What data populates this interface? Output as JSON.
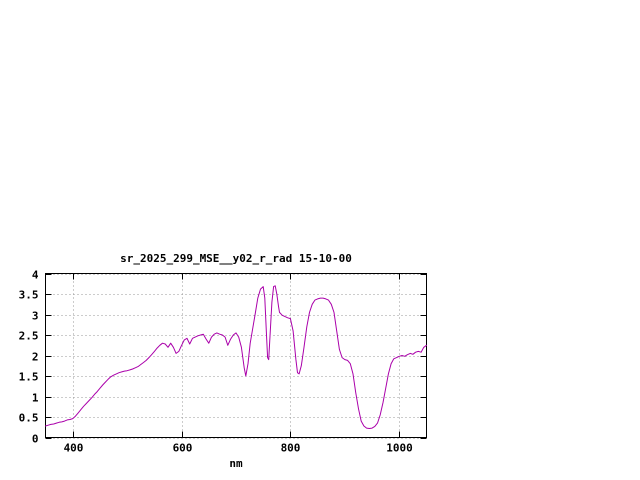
{
  "chart_data": {
    "type": "line",
    "title": "sr_2025_299_MSE__y02_r_rad 15-10-00",
    "xlabel": "nm",
    "ylabel": "",
    "xlim": [
      350,
      1050
    ],
    "ylim": [
      0,
      4
    ],
    "x_ticks": [
      400,
      600,
      800,
      1000
    ],
    "y_ticks": [
      0,
      0.5,
      1,
      1.5,
      2,
      2.5,
      3,
      3.5,
      4
    ],
    "grid": true,
    "legend": "none",
    "line_color": "#aa00aa",
    "grid_color": "#999999",
    "border_color": "#000000",
    "series": [
      {
        "name": "sr_2025_299_MSE__y02_r_rad",
        "x": [
          350,
          355,
          360,
          365,
          370,
          375,
          380,
          385,
          390,
          395,
          400,
          405,
          410,
          415,
          420,
          425,
          430,
          435,
          440,
          445,
          450,
          455,
          460,
          465,
          470,
          475,
          480,
          485,
          490,
          495,
          500,
          505,
          510,
          515,
          520,
          525,
          530,
          535,
          540,
          545,
          550,
          555,
          560,
          565,
          570,
          575,
          580,
          585,
          590,
          595,
          600,
          605,
          610,
          615,
          620,
          625,
          630,
          635,
          640,
          645,
          650,
          655,
          660,
          665,
          670,
          675,
          680,
          685,
          690,
          695,
          700,
          705,
          710,
          715,
          718,
          722,
          726,
          730,
          735,
          740,
          745,
          750,
          753,
          756,
          758,
          760,
          763,
          766,
          769,
          772,
          775,
          778,
          780,
          785,
          790,
          795,
          800,
          805,
          810,
          813,
          816,
          820,
          825,
          830,
          835,
          840,
          845,
          850,
          855,
          860,
          865,
          870,
          875,
          880,
          885,
          890,
          895,
          900,
          905,
          910,
          915,
          920,
          925,
          930,
          935,
          940,
          945,
          950,
          955,
          960,
          965,
          970,
          975,
          980,
          985,
          990,
          995,
          1000,
          1005,
          1010,
          1015,
          1020,
          1025,
          1030,
          1035,
          1040,
          1045,
          1050
        ],
        "y": [
          0.28,
          0.3,
          0.32,
          0.33,
          0.35,
          0.37,
          0.38,
          0.4,
          0.43,
          0.44,
          0.46,
          0.52,
          0.6,
          0.68,
          0.76,
          0.83,
          0.9,
          0.97,
          1.05,
          1.12,
          1.2,
          1.28,
          1.35,
          1.42,
          1.48,
          1.52,
          1.55,
          1.58,
          1.6,
          1.62,
          1.63,
          1.65,
          1.67,
          1.7,
          1.73,
          1.78,
          1.83,
          1.88,
          1.95,
          2.02,
          2.1,
          2.18,
          2.25,
          2.3,
          2.28,
          2.2,
          2.3,
          2.2,
          2.05,
          2.1,
          2.25,
          2.38,
          2.42,
          2.28,
          2.42,
          2.45,
          2.48,
          2.5,
          2.52,
          2.4,
          2.3,
          2.45,
          2.52,
          2.55,
          2.52,
          2.5,
          2.45,
          2.25,
          2.4,
          2.5,
          2.55,
          2.45,
          2.2,
          1.7,
          1.5,
          1.8,
          2.3,
          2.6,
          3.0,
          3.4,
          3.62,
          3.68,
          3.4,
          2.5,
          1.95,
          1.9,
          2.6,
          3.3,
          3.68,
          3.7,
          3.5,
          3.2,
          3.05,
          2.98,
          2.95,
          2.92,
          2.9,
          2.6,
          1.9,
          1.58,
          1.55,
          1.75,
          2.2,
          2.7,
          3.05,
          3.25,
          3.35,
          3.38,
          3.4,
          3.4,
          3.38,
          3.35,
          3.25,
          3.05,
          2.6,
          2.15,
          1.95,
          1.9,
          1.88,
          1.8,
          1.55,
          1.1,
          0.7,
          0.4,
          0.28,
          0.23,
          0.22,
          0.23,
          0.27,
          0.35,
          0.55,
          0.85,
          1.2,
          1.55,
          1.8,
          1.92,
          1.95,
          1.98,
          2.0,
          1.98,
          2.02,
          2.05,
          2.03,
          2.08,
          2.1,
          2.08,
          2.2,
          2.25
        ]
      }
    ]
  }
}
